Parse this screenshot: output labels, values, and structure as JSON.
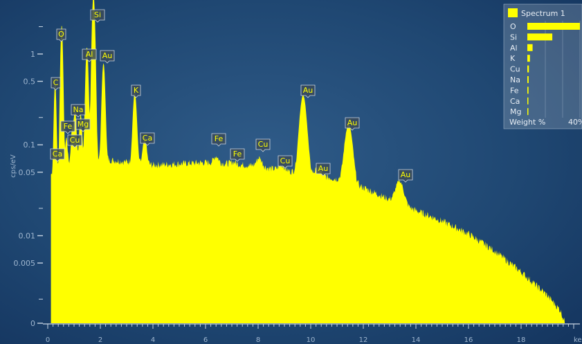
{
  "chart_data": {
    "type": "area",
    "ylabel": "cps/eV",
    "xlabel_partial": "ke",
    "x_range": [
      0,
      20
    ],
    "y_scale": "log",
    "x_ticks": [
      0,
      2,
      4,
      6,
      8,
      10,
      12,
      14,
      16,
      18
    ],
    "y_ticks": [
      "0.005",
      "0.01",
      "0.05",
      "0.1",
      "0.5",
      "1",
      "0"
    ],
    "peak_labels": [
      {
        "label": "Si",
        "x": 1.74
      },
      {
        "label": "O",
        "x": 0.53
      },
      {
        "label": "Al",
        "x": 1.49
      },
      {
        "label": "Au",
        "x": 2.12
      },
      {
        "label": "C",
        "x": 0.28
      },
      {
        "label": "K",
        "x": 3.31
      },
      {
        "label": "Na",
        "x": 1.04
      },
      {
        "label": "Fe",
        "x": 0.71
      },
      {
        "label": "Mg",
        "x": 1.25
      },
      {
        "label": "Cu",
        "x": 0.93
      },
      {
        "label": "Ca",
        "x": 3.69
      },
      {
        "label": "Ca",
        "x": 0.34
      },
      {
        "label": "Au",
        "x": 9.71
      },
      {
        "label": "Au",
        "x": 11.44
      },
      {
        "label": "Fe",
        "x": 6.4
      },
      {
        "label": "Fe",
        "x": 7.06
      },
      {
        "label": "Cu",
        "x": 8.04
      },
      {
        "label": "Cu",
        "x": 8.9
      },
      {
        "label": "Au",
        "x": 10.3
      },
      {
        "label": "Au",
        "x": 13.38
      }
    ],
    "legend": {
      "series_name": "Spectrum 1",
      "footer_label": "Weight %",
      "footer_max": "40%",
      "scale_max": 40,
      "elements": [
        {
          "label": "O",
          "value": 40,
          "color": "#e8eef5"
        },
        {
          "label": "Si",
          "value": 19,
          "color": "#e8eef5"
        },
        {
          "label": "Al",
          "value": 4,
          "color": "#e8eef5"
        },
        {
          "label": "K",
          "value": 2,
          "color": "#e8eef5"
        },
        {
          "label": "Cu",
          "value": 1.2,
          "color": "#e8eef5"
        },
        {
          "label": "Na",
          "value": 1,
          "color": "#e8eef5"
        },
        {
          "label": "Fe",
          "value": 0.9,
          "color": "#e8eef5"
        },
        {
          "label": "Ca",
          "value": 0.3,
          "color": "#e8323c"
        },
        {
          "label": "Mg",
          "value": 0.3,
          "color": "#e8323c"
        }
      ]
    },
    "series": [
      {
        "name": "Spectrum 1",
        "color": "#ffff00",
        "background": {
          "x": [
            0,
            0.5,
            1,
            2,
            3,
            4,
            5,
            6,
            7,
            8,
            9,
            10,
            11,
            12,
            13,
            14,
            15,
            16,
            17,
            18,
            19,
            19.5,
            20
          ],
          "y": [
            0.045,
            0.055,
            0.065,
            0.07,
            0.065,
            0.06,
            0.062,
            0.064,
            0.062,
            0.058,
            0.052,
            0.048,
            0.042,
            0.034,
            0.025,
            0.019,
            0.0145,
            0.0105,
            0.0068,
            0.004,
            0.0022,
            0.0015,
            0.0006
          ]
        },
        "peaks": [
          {
            "x": 0.28,
            "y": 0.5
          },
          {
            "x": 0.53,
            "y": 2.1
          },
          {
            "x": 0.71,
            "y": 0.12
          },
          {
            "x": 0.93,
            "y": 0.15
          },
          {
            "x": 1.04,
            "y": 0.25
          },
          {
            "x": 1.25,
            "y": 0.22
          },
          {
            "x": 1.49,
            "y": 1.2
          },
          {
            "x": 1.74,
            "y": 4.5
          },
          {
            "x": 2.12,
            "y": 0.8
          },
          {
            "x": 3.31,
            "y": 0.38
          },
          {
            "x": 3.69,
            "y": 0.12
          },
          {
            "x": 6.4,
            "y": 0.075
          },
          {
            "x": 7.06,
            "y": 0.065
          },
          {
            "x": 8.04,
            "y": 0.072
          },
          {
            "x": 8.9,
            "y": 0.06
          },
          {
            "x": 9.71,
            "y": 0.35
          },
          {
            "x": 10.3,
            "y": 0.055
          },
          {
            "x": 11.44,
            "y": 0.17
          },
          {
            "x": 13.38,
            "y": 0.04
          }
        ]
      }
    ]
  }
}
